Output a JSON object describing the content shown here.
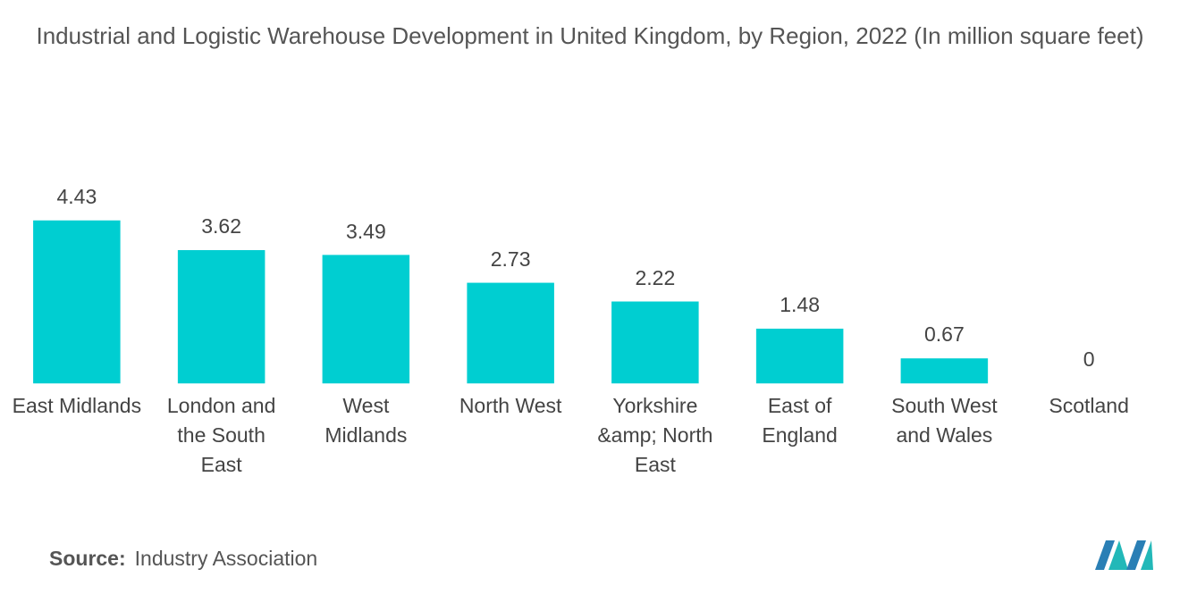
{
  "chart_data": {
    "type": "bar",
    "title": "Industrial and Logistic Warehouse Development in United Kingdom, by Region, 2022 (In million square feet)",
    "categories": [
      "East Midlands",
      "London and the South East",
      "West Midlands",
      "North West",
      "Yorkshire &amp; North East",
      "East of England",
      "South West and Wales",
      "Scotland"
    ],
    "values": [
      4.43,
      3.62,
      3.49,
      2.73,
      2.22,
      1.48,
      0.67,
      0
    ],
    "color": "#00ced1"
  },
  "source": {
    "label": "Source:",
    "text": "Industry Association"
  }
}
